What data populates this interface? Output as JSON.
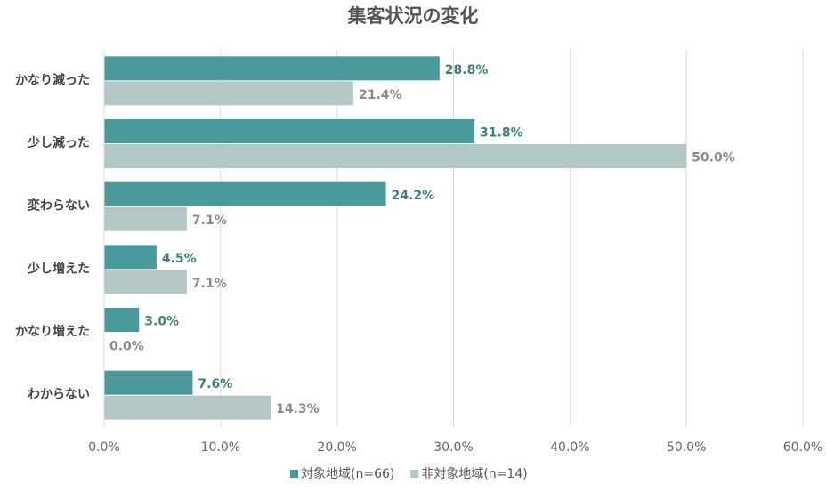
{
  "chart_data": {
    "type": "hbar",
    "title": "集客状況の変化",
    "categories": [
      "かなり減った",
      "少し減った",
      "変わらない",
      "少し増えた",
      "かなり増えた",
      "わからない"
    ],
    "series": [
      {
        "name": "対象地域(n=66)",
        "color": "#4a9a9c",
        "label_color": "#3f7f80",
        "values": [
          28.8,
          31.8,
          24.2,
          4.5,
          3.0,
          7.6
        ],
        "value_labels": [
          "28.8%",
          "31.8%",
          "24.2%",
          "4.5%",
          "3.0%",
          "7.6%"
        ]
      },
      {
        "name": "非対象地域(n=14)",
        "color": "#b3c7c7",
        "label_color": "#8c8c8c",
        "values": [
          21.4,
          50.0,
          7.1,
          7.1,
          0.0,
          14.3
        ],
        "value_labels": [
          "21.4%",
          "50.0%",
          "7.1%",
          "7.1%",
          "0.0%",
          "14.3%"
        ]
      }
    ],
    "xlim": [
      0,
      60
    ],
    "xticks": [
      {
        "value": 0,
        "label": "0.0%"
      },
      {
        "value": 10,
        "label": "10.0%"
      },
      {
        "value": 20,
        "label": "20.0%"
      },
      {
        "value": 30,
        "label": "30.0%"
      },
      {
        "value": 40,
        "label": "40.0%"
      },
      {
        "value": 50,
        "label": "50.0%"
      },
      {
        "value": 60,
        "label": "60.0%"
      }
    ],
    "grid": true,
    "legend": "bottom"
  }
}
